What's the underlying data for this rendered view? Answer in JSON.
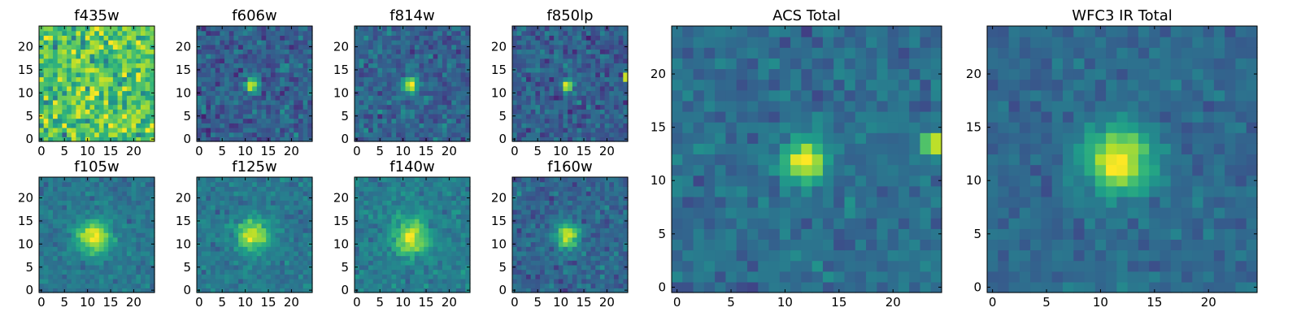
{
  "chart_data": [
    {
      "type": "heatmap",
      "title": "f435w",
      "xlim": [
        0,
        24
      ],
      "ylim": [
        0,
        24
      ],
      "xticks": [
        0,
        5,
        10,
        15,
        20
      ],
      "yticks": [
        0,
        5,
        10,
        15,
        20
      ],
      "peak": [
        11.5,
        11.5
      ],
      "colormap": "viridis",
      "seed": 11,
      "background": 0.72,
      "noise": 0.55,
      "amplitude": 0.12,
      "sigma": 1.4,
      "hot_pixels": []
    },
    {
      "type": "heatmap",
      "title": "f606w",
      "xlim": [
        0,
        24
      ],
      "ylim": [
        0,
        24
      ],
      "xticks": [
        0,
        5,
        10,
        15,
        20
      ],
      "yticks": [
        0,
        5,
        10,
        15,
        20
      ],
      "peak": [
        11.5,
        11.8
      ],
      "colormap": "viridis",
      "seed": 23,
      "background": 0.3,
      "noise": 0.32,
      "amplitude": 0.72,
      "sigma": 1.05,
      "hot_pixels": []
    },
    {
      "type": "heatmap",
      "title": "f814w",
      "xlim": [
        0,
        24
      ],
      "ylim": [
        0,
        24
      ],
      "xticks": [
        0,
        5,
        10,
        15,
        20
      ],
      "yticks": [
        0,
        5,
        10,
        15,
        20
      ],
      "peak": [
        11.6,
        11.8
      ],
      "colormap": "viridis",
      "seed": 37,
      "background": 0.32,
      "noise": 0.3,
      "amplitude": 0.68,
      "sigma": 1.15,
      "hot_pixels": []
    },
    {
      "type": "heatmap",
      "title": "f850lp",
      "xlim": [
        0,
        24
      ],
      "ylim": [
        0,
        24
      ],
      "xticks": [
        0,
        5,
        10,
        15,
        20
      ],
      "yticks": [
        0,
        5,
        10,
        15,
        20
      ],
      "peak": [
        11.5,
        11.8
      ],
      "colormap": "viridis",
      "seed": 41,
      "background": 0.3,
      "noise": 0.3,
      "amplitude": 0.58,
      "sigma": 0.9,
      "hot_pixels": [
        [
          24,
          13,
          0.92
        ],
        [
          24,
          14,
          0.92
        ]
      ]
    },
    {
      "type": "heatmap",
      "title": "f105w",
      "xlim": [
        0,
        24
      ],
      "ylim": [
        0,
        24
      ],
      "xticks": [
        0,
        5,
        10,
        15,
        20
      ],
      "yticks": [
        0,
        5,
        10,
        15,
        20
      ],
      "peak": [
        11.3,
        11.5
      ],
      "colormap": "viridis",
      "seed": 53,
      "background": 0.4,
      "noise": 0.2,
      "amplitude": 0.58,
      "sigma": 2.5,
      "hot_pixels": []
    },
    {
      "type": "heatmap",
      "title": "f125w",
      "xlim": [
        0,
        24
      ],
      "ylim": [
        0,
        24
      ],
      "xticks": [
        0,
        5,
        10,
        15,
        20
      ],
      "yticks": [
        0,
        5,
        10,
        15,
        20
      ],
      "peak": [
        11.7,
        11.8
      ],
      "colormap": "viridis",
      "seed": 61,
      "background": 0.4,
      "noise": 0.22,
      "amplitude": 0.56,
      "sigma": 2.4,
      "hot_pixels": []
    },
    {
      "type": "heatmap",
      "title": "f140w",
      "xlim": [
        0,
        24
      ],
      "ylim": [
        0,
        24
      ],
      "xticks": [
        0,
        5,
        10,
        15,
        20
      ],
      "yticks": [
        0,
        5,
        10,
        15,
        20
      ],
      "peak": [
        11.8,
        11.6
      ],
      "colormap": "viridis",
      "seed": 71,
      "background": 0.42,
      "noise": 0.22,
      "amplitude": 0.56,
      "sigma": 2.6,
      "hot_pixels": []
    },
    {
      "type": "heatmap",
      "title": "f160w",
      "xlim": [
        0,
        24
      ],
      "ylim": [
        0,
        24
      ],
      "xticks": [
        0,
        5,
        10,
        15,
        20
      ],
      "yticks": [
        0,
        5,
        10,
        15,
        20
      ],
      "peak": [
        11.6,
        12.0
      ],
      "colormap": "viridis",
      "seed": 83,
      "background": 0.33,
      "noise": 0.26,
      "amplitude": 0.62,
      "sigma": 1.9,
      "hot_pixels": []
    },
    {
      "type": "heatmap",
      "title": "ACS Total",
      "xlim": [
        0,
        24
      ],
      "ylim": [
        0,
        24
      ],
      "xticks": [
        0,
        5,
        10,
        15,
        20
      ],
      "yticks": [
        0,
        5,
        10,
        15,
        20
      ],
      "peak": [
        11.8,
        11.8
      ],
      "colormap": "viridis",
      "seed": 97,
      "background": 0.36,
      "noise": 0.22,
      "amplitude": 0.66,
      "sigma": 1.35,
      "hot_pixels": [
        [
          24,
          13,
          0.9
        ],
        [
          24,
          14,
          0.9
        ],
        [
          23,
          13,
          0.72
        ],
        [
          23,
          14,
          0.72
        ]
      ]
    },
    {
      "type": "heatmap",
      "title": "WFC3 IR Total",
      "xlim": [
        0,
        24
      ],
      "ylim": [
        0,
        24
      ],
      "xticks": [
        0,
        5,
        10,
        15,
        20
      ],
      "yticks": [
        0,
        5,
        10,
        15,
        20
      ],
      "peak": [
        11.7,
        12.0
      ],
      "colormap": "viridis",
      "seed": 103,
      "background": 0.34,
      "noise": 0.18,
      "amplitude": 0.66,
      "sigma": 2.2,
      "hot_pixels": []
    }
  ]
}
